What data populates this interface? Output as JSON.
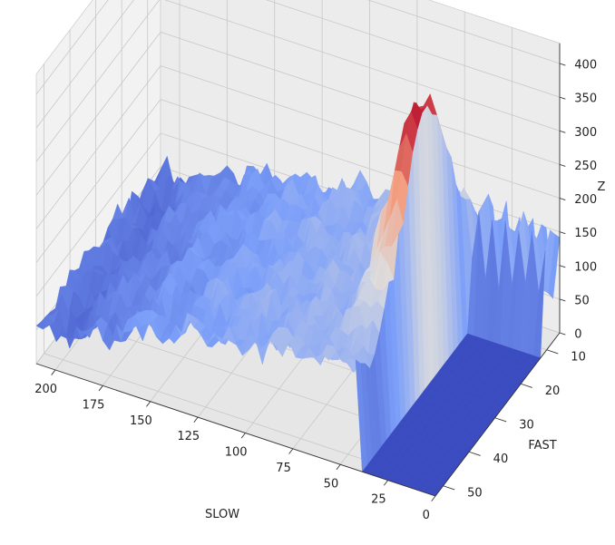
{
  "chart_data": {
    "type": "surface",
    "colormap": "coolwarm",
    "xlabel": "SLOW",
    "ylabel": "FAST",
    "zlabel": "Z",
    "x_ticks": [
      "200",
      "175",
      "150",
      "125",
      "100",
      "75",
      "50",
      "25",
      "0"
    ],
    "y_ticks": [
      "10",
      "20",
      "30",
      "40",
      "50"
    ],
    "z_ticks": [
      "0",
      "50",
      "100",
      "150",
      "200",
      "250",
      "300",
      "350",
      "400"
    ],
    "xlim": [
      0,
      210
    ],
    "ylim": [
      5,
      53
    ],
    "zlim": [
      0,
      430
    ],
    "grid": true,
    "peak": {
      "slow": 45,
      "fast": 26,
      "z": 420
    },
    "zero_region": {
      "slow_range": [
        0,
        40
      ],
      "fast_range": [
        12,
        53
      ],
      "z": 0
    },
    "periodic_spikes": {
      "slow_range": [
        0,
        40
      ],
      "z_range": [
        120,
        170
      ]
    }
  }
}
